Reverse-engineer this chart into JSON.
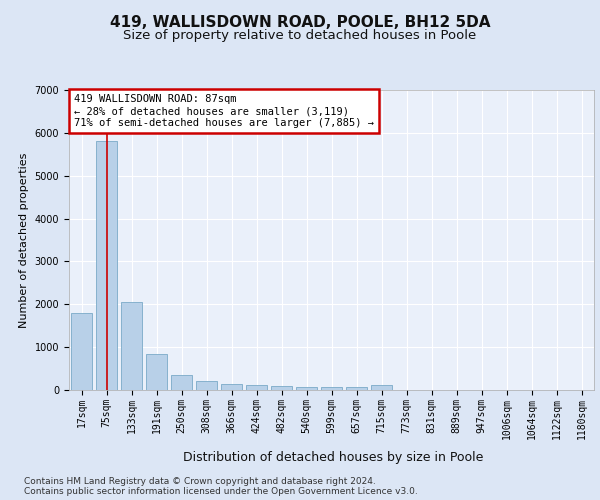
{
  "title1": "419, WALLISDOWN ROAD, POOLE, BH12 5DA",
  "title2": "Size of property relative to detached houses in Poole",
  "xlabel": "Distribution of detached houses by size in Poole",
  "ylabel": "Number of detached properties",
  "categories": [
    "17sqm",
    "75sqm",
    "133sqm",
    "191sqm",
    "250sqm",
    "308sqm",
    "366sqm",
    "424sqm",
    "482sqm",
    "540sqm",
    "599sqm",
    "657sqm",
    "715sqm",
    "773sqm",
    "831sqm",
    "889sqm",
    "947sqm",
    "1006sqm",
    "1064sqm",
    "1122sqm",
    "1180sqm"
  ],
  "values": [
    1790,
    5820,
    2060,
    830,
    340,
    220,
    130,
    110,
    85,
    75,
    70,
    65,
    110,
    0,
    0,
    0,
    0,
    0,
    0,
    0,
    0
  ],
  "bar_color": "#b8d0e8",
  "bar_edge_color": "#7aaac8",
  "annotation_line1": "419 WALLISDOWN ROAD: 87sqm",
  "annotation_line2": "← 28% of detached houses are smaller (3,119)",
  "annotation_line3": "71% of semi-detached houses are larger (7,885) →",
  "annotation_box_color": "#ffffff",
  "annotation_box_edge": "#cc0000",
  "vline_color": "#cc0000",
  "vline_x": 1.0,
  "ylim": [
    0,
    7000
  ],
  "yticks": [
    0,
    1000,
    2000,
    3000,
    4000,
    5000,
    6000,
    7000
  ],
  "bg_color": "#dce6f5",
  "plot_bg_color": "#eaf0fa",
  "footer_line1": "Contains HM Land Registry data © Crown copyright and database right 2024.",
  "footer_line2": "Contains public sector information licensed under the Open Government Licence v3.0.",
  "title1_fontsize": 11,
  "title2_fontsize": 9.5,
  "xlabel_fontsize": 9,
  "ylabel_fontsize": 8,
  "tick_fontsize": 7,
  "annotation_fontsize": 7.5
}
